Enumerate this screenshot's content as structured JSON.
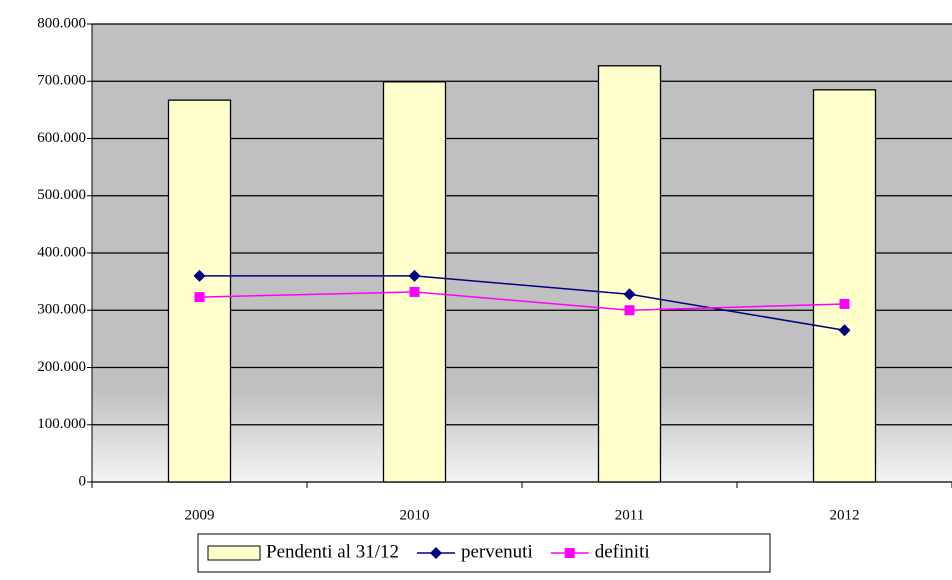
{
  "chart_data": {
    "type": "bar",
    "categories": [
      "2009",
      "2010",
      "2011",
      "2012"
    ],
    "series": [
      {
        "name": "Pendenti al 31/12",
        "type": "bar",
        "color": "#ffffcc",
        "values": [
          667000,
          699000,
          727000,
          685000
        ]
      },
      {
        "name": "pervenuti",
        "type": "line",
        "marker": "diamond",
        "color": "#000080",
        "values": [
          360000,
          360000,
          328000,
          265000
        ]
      },
      {
        "name": "definiti",
        "type": "line",
        "marker": "square",
        "color": "#ff00ff",
        "values": [
          323000,
          332000,
          300000,
          311000
        ]
      }
    ],
    "ylim": [
      0,
      800000
    ],
    "yticks": [
      {
        "value": 0,
        "label": "0"
      },
      {
        "value": 100000,
        "label": "100.000"
      },
      {
        "value": 200000,
        "label": "200.000"
      },
      {
        "value": 300000,
        "label": "300.000"
      },
      {
        "value": 400000,
        "label": "400.000"
      },
      {
        "value": 500000,
        "label": "500.000"
      },
      {
        "value": 600000,
        "label": "600.000"
      },
      {
        "value": 700000,
        "label": "700.000"
      },
      {
        "value": 800000,
        "label": "800.000"
      }
    ],
    "grid": true,
    "legend": "bottom"
  }
}
